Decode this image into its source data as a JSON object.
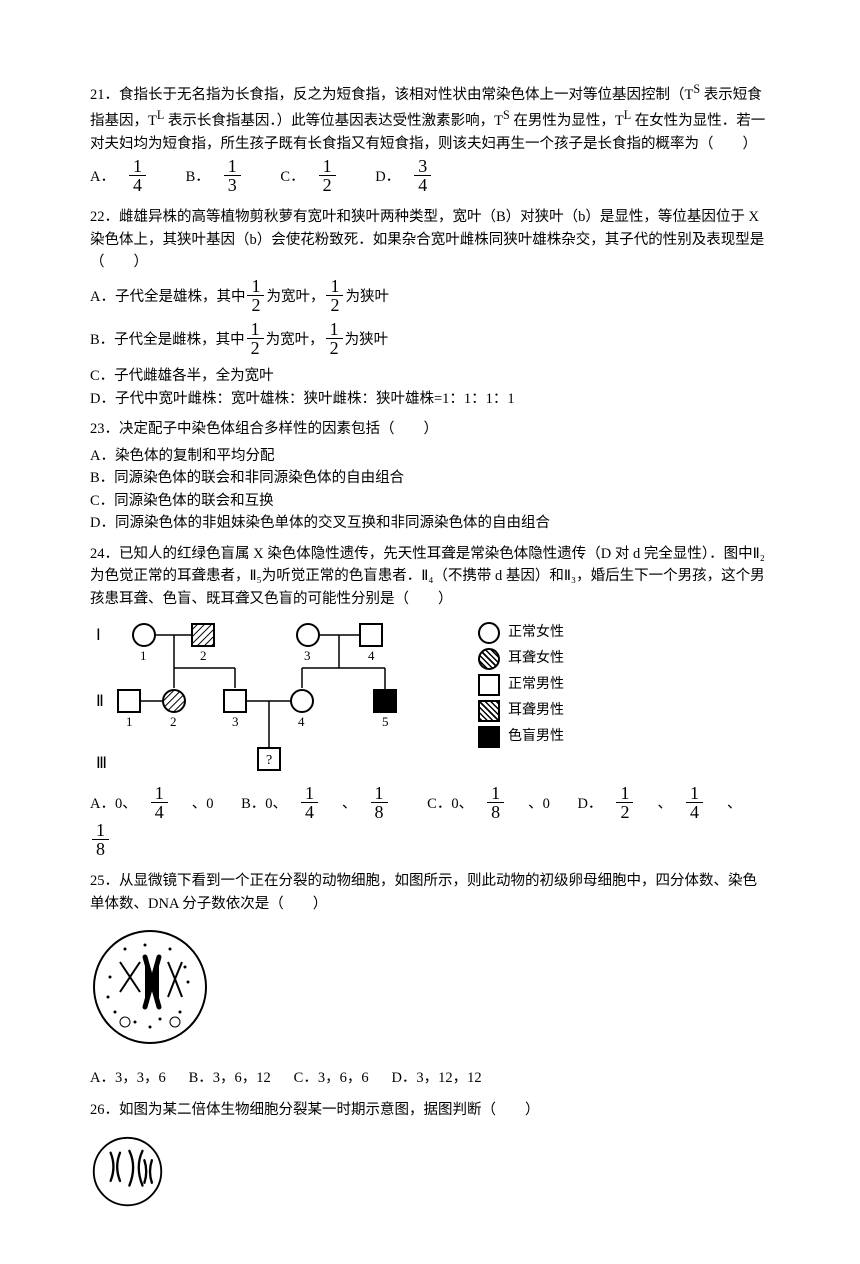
{
  "q21": {
    "stem": "21．食指长于无名指为长食指，反之为短食指，该相对性状由常染色体上一对等位基因控制（T<sup>S</sup> 表示短食指基因，T<sup>L</sup> 表示长食指基因．）此等位基因表达受性激素影响，T<sup>S</sup> 在男性为显性，T<sup>L</sup> 在女性为显性．若一对夫妇均为短食指，所生孩子既有长食指又有短食指，则该夫妇再生一个孩子是长食指的概率为（　　）",
    "A": "A．",
    "An": "1",
    "Ad": "4",
    "B": "B．",
    "Bn": "1",
    "Bd": "3",
    "C": "C．",
    "Cn": "1",
    "Cd": "2",
    "D": "D．",
    "Dn": "3",
    "Dd": "4"
  },
  "q22": {
    "stem": "22．雌雄异株的高等植物剪秋萝有宽叶和狭叶两种类型，宽叶（B）对狭叶（b）是显性，等位基因位于 X 染色体上，其狭叶基因（b）会使花粉致死．如果杂合宽叶雌株同狭叶雄株杂交，其子代的性别及表现型是（　　）",
    "A_pre": "A．子代全是雄株，其中",
    "A_mid": "为宽叶，",
    "A_post": "为狭叶",
    "B_pre": "B．子代全是雌株，其中",
    "B_mid": "为宽叶，",
    "B_post": "为狭叶",
    "half_n": "1",
    "half_d": "2",
    "C": "C．子代雌雄各半，全为宽叶",
    "D": "D．子代中宽叶雌株：宽叶雄株：狭叶雌株：狭叶雄株=1：1：1：1"
  },
  "q23": {
    "stem": "23．决定配子中染色体组合多样性的因素包括（　　）",
    "A": "A．染色体的复制和平均分配",
    "B": "B．同源染色体的联会和非同源染色体的自由组合",
    "C": "C．同源染色体的联会和互换",
    "D": "D．同源染色体的非姐妹染色单体的交叉互换和非同源染色体的自由组合"
  },
  "q24": {
    "stem": "24．已知人的红绿色盲属 X 染色体隐性遗传，先天性耳聋是常染色体隐性遗传（D 对 d 完全显性）．图中Ⅱ₂为色觉正常的耳聋患者，Ⅱ₅为听觉正常的色盲患者．Ⅱ₄（不携带 d 基因）和Ⅱ₃，婚后生下一个男孩，这个男孩患耳聋、色盲、既耳聋又色盲的可能性分别是（　　）",
    "gen": {
      "I": "Ⅰ",
      "II": "Ⅱ",
      "III": "Ⅲ",
      "n1": "1",
      "n2": "2",
      "n3": "3",
      "n4": "4",
      "n5": "5",
      "q": "?"
    },
    "legend": {
      "a": "正常女性",
      "b": "耳聋女性",
      "c": "正常男性",
      "d": "耳聋男性",
      "e": "色盲男性"
    },
    "opts": {
      "A": "A．0、",
      "A2": "、0",
      "B": "B．0、",
      "B2": "、",
      "C": "C．0、",
      "C2": "、0",
      "D": "D．",
      "D2": "、",
      "D3": "、",
      "v14n": "1",
      "v14d": "4",
      "v18n": "1",
      "v18d": "8",
      "v12n": "1",
      "v12d": "2"
    }
  },
  "q25": {
    "stem": "25．从显微镜下看到一个正在分裂的动物细胞，如图所示，则此动物的初级卵母细胞中，四分体数、染色单体数、DNA 分子数依次是（　　）",
    "A": "A．3，3，6",
    "B": "B．3，6，12",
    "C": "C．3，6，6",
    "D": "D．3，12，12"
  },
  "q26": {
    "stem": "26．如图为某二倍体生物细胞分裂某一时期示意图，据图判断（　　）"
  }
}
